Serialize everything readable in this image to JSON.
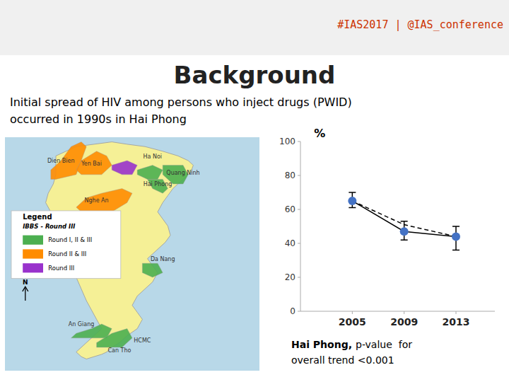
{
  "chart_data": {
    "type": "line",
    "title": "Background",
    "subtitle": [
      "Initial spread of HIV among persons who inject drugs (PWID)",
      "occurred in 1990s in Hai Phong"
    ],
    "ylabel": "%",
    "x": [
      2005,
      2009,
      2013
    ],
    "xlim": [
      2001,
      2016
    ],
    "xticks": [
      2005,
      2009,
      2013
    ],
    "ylim": [
      0,
      100
    ],
    "yticks": [
      0,
      20,
      40,
      60,
      80,
      100
    ],
    "grid": false,
    "series": [
      {
        "values": [
          65,
          47,
          44
        ],
        "ci_upper": [
          70,
          53,
          50
        ],
        "ci_lower": [
          61,
          42,
          36
        ],
        "color": "#4472c4",
        "marker": "circle",
        "line_style": "solid"
      },
      {
        "values": [
          65,
          51,
          44
        ],
        "color": "#000000",
        "line_style": "dashed"
      }
    ],
    "annotations": [
      {
        "text": "#IAS2017 | @IAS_conference",
        "color": "#cc3300"
      },
      {
        "text": "Hai Phong,"
      },
      {
        "text": "p-value  for"
      },
      {
        "text": "overall trend <0.001"
      },
      {
        "text": "Dien Bien"
      },
      {
        "text": "Yen Bai"
      },
      {
        "text": "Ha Noi"
      },
      {
        "text": "Quang Ninh"
      },
      {
        "text": "Hai Phong"
      },
      {
        "text": "Nghe An"
      },
      {
        "text": "Da Nang"
      },
      {
        "text": "An Giang"
      },
      {
        "text": "Can Tho"
      },
      {
        "text": "HCMC"
      },
      {
        "text": "Legend"
      },
      {
        "text": "IBBS - Round III"
      },
      {
        "text": "Round I, II & III",
        "color": "#4caf50"
      },
      {
        "text": "Round II & III",
        "color": "#ff8c00"
      },
      {
        "text": "Round III",
        "color": "#9932cc"
      },
      {
        "text": "N"
      }
    ]
  }
}
